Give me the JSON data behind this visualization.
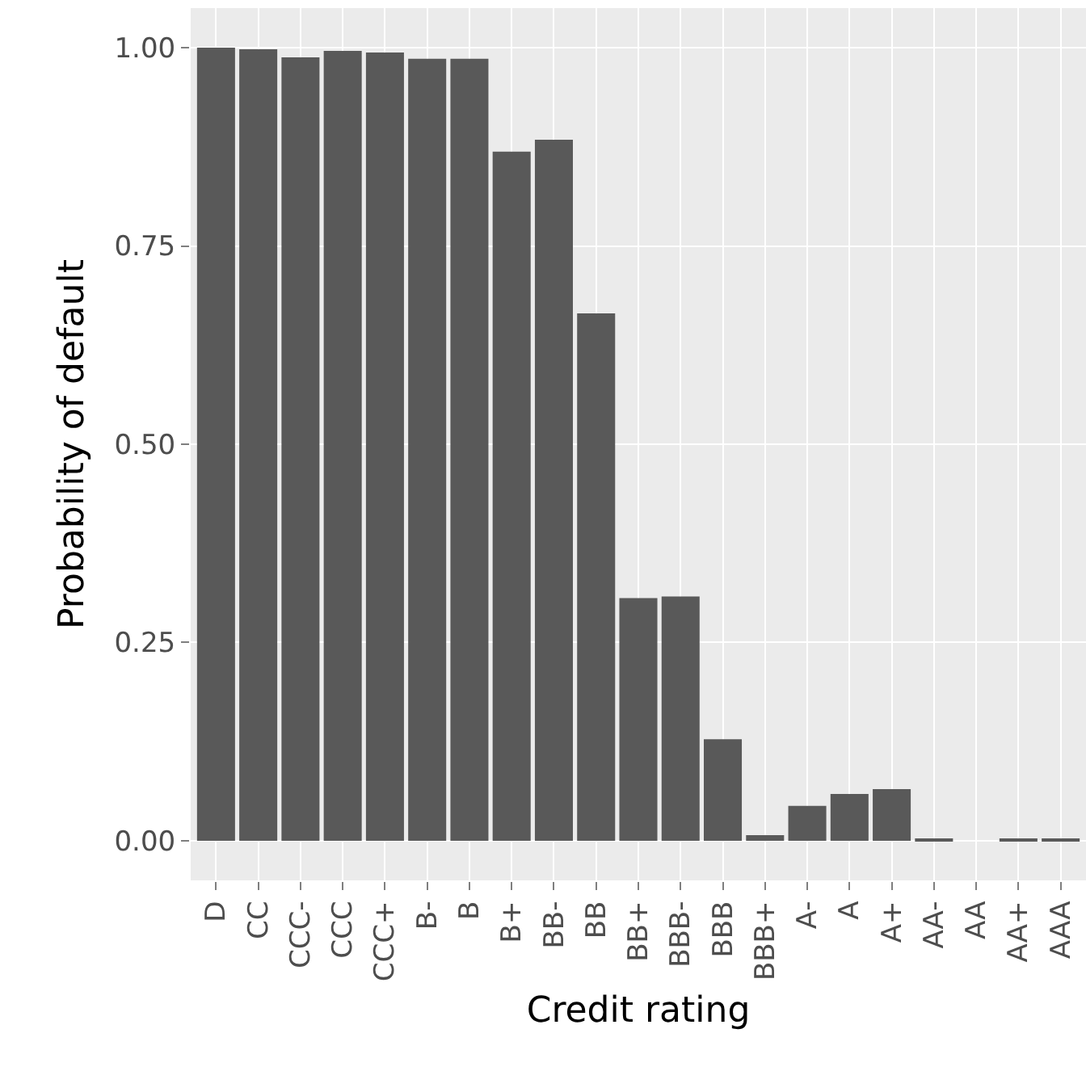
{
  "chart_data": {
    "type": "bar",
    "xlabel": "Credit rating",
    "ylabel": "Probability of default",
    "categories": [
      "D",
      "CC",
      "CCC-",
      "CCC",
      "CCC+",
      "B-",
      "B",
      "B+",
      "BB-",
      "BB",
      "BB+",
      "BBB-",
      "BBB",
      "BBB+",
      "A-",
      "A",
      "A+",
      "AA-",
      "AA",
      "AA+",
      "AAA"
    ],
    "values": [
      1.0,
      0.998,
      0.988,
      0.996,
      0.994,
      0.986,
      0.986,
      0.869,
      0.884,
      0.665,
      0.306,
      0.308,
      0.128,
      0.007,
      0.044,
      0.059,
      0.065,
      0.001,
      0,
      0.001,
      0.001
    ],
    "color": "#595959",
    "ylim": [
      -0.05,
      1.05
    ],
    "yticks": [
      {
        "value": 0,
        "label": "0.00"
      },
      {
        "value": 0.25,
        "label": "0.25"
      },
      {
        "value": 0.5,
        "label": "0.50"
      },
      {
        "value": 0.75,
        "label": "0.75"
      },
      {
        "value": 1,
        "label": "1.00"
      }
    ],
    "grid": true
  }
}
